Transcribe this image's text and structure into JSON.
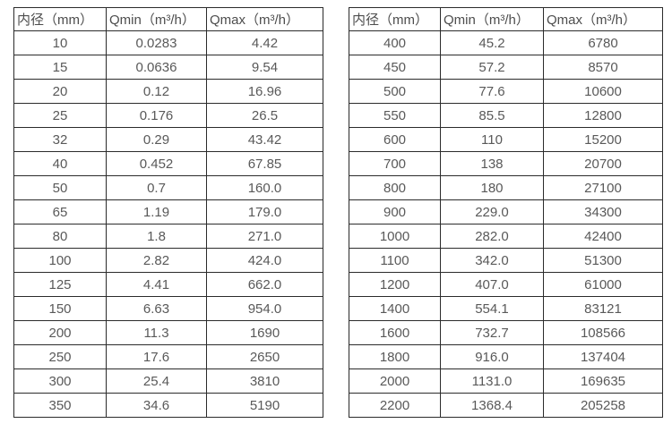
{
  "colors": {
    "background": "#ffffff",
    "border": "#2b2b2b",
    "header_text": "#4d4d4d",
    "cell_text": "#595959"
  },
  "tables": [
    {
      "name": "flow-table-small-diameters",
      "headers": [
        "内径（mm）",
        "Qmin（m³/h）",
        "Qmax（m³/h）"
      ],
      "rows": [
        [
          "10",
          "0.0283",
          "4.42"
        ],
        [
          "15",
          "0.0636",
          "9.54"
        ],
        [
          "20",
          "0.12",
          "16.96"
        ],
        [
          "25",
          "0.176",
          "26.5"
        ],
        [
          "32",
          "0.29",
          "43.42"
        ],
        [
          "40",
          "0.452",
          "67.85"
        ],
        [
          "50",
          "0.7",
          "160.0"
        ],
        [
          "65",
          "1.19",
          "179.0"
        ],
        [
          "80",
          "1.8",
          "271.0"
        ],
        [
          "100",
          "2.82",
          "424.0"
        ],
        [
          "125",
          "4.41",
          "662.0"
        ],
        [
          "150",
          "6.63",
          "954.0"
        ],
        [
          "200",
          "11.3",
          "1690"
        ],
        [
          "250",
          "17.6",
          "2650"
        ],
        [
          "300",
          "25.4",
          "3810"
        ],
        [
          "350",
          "34.6",
          "5190"
        ]
      ]
    },
    {
      "name": "flow-table-large-diameters",
      "headers": [
        "内径（mm）",
        "Qmin（m³/h）",
        "Qmax（m³/h）"
      ],
      "rows": [
        [
          "400",
          "45.2",
          "6780"
        ],
        [
          "450",
          "57.2",
          "8570"
        ],
        [
          "500",
          "77.6",
          "10600"
        ],
        [
          "550",
          "85.5",
          "12800"
        ],
        [
          "600",
          "110",
          "15200"
        ],
        [
          "700",
          "138",
          "20700"
        ],
        [
          "800",
          "180",
          "27100"
        ],
        [
          "900",
          "229.0",
          "34300"
        ],
        [
          "1000",
          "282.0",
          "42400"
        ],
        [
          "1100",
          "342.0",
          "51300"
        ],
        [
          "1200",
          "407.0",
          "61000"
        ],
        [
          "1400",
          "554.1",
          "83121"
        ],
        [
          "1600",
          "732.7",
          "108566"
        ],
        [
          "1800",
          "916.0",
          "137404"
        ],
        [
          "2000",
          "1131.0",
          "169635"
        ],
        [
          "2200",
          "1368.4",
          "205258"
        ]
      ]
    }
  ]
}
